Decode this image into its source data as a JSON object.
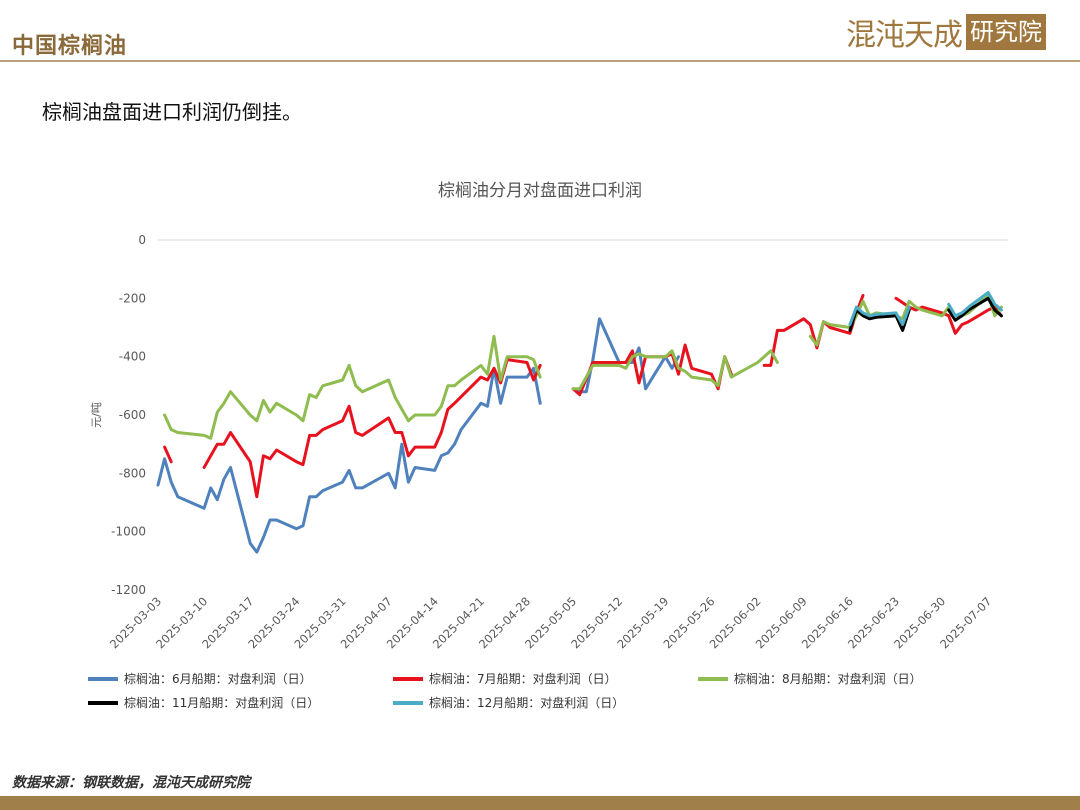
{
  "header": {
    "title": "中国棕榈油",
    "logo_text": "混沌天成",
    "logo_box_text": "研究院"
  },
  "subtitle": "棕榈油盘面进口利润仍倒挂。",
  "source": "数据来源：钢联数据，混沌天成研究院",
  "colors": {
    "s6": "#4f81bd",
    "s7": "#e8121e",
    "s8": "#8fbc4f",
    "s11": "#000000",
    "s12": "#4bacc6"
  },
  "chart_data": {
    "type": "line",
    "title": "棕榈油分月对盘面进口利润",
    "ylabel": "元/吨",
    "xlabel": "",
    "ylim": [
      -1200,
      0
    ],
    "yticks": [
      0,
      -200,
      -400,
      -600,
      -800,
      -1000,
      -1200
    ],
    "xlim": [
      "2025-03-03",
      "2025-07-10"
    ],
    "xticks": [
      "2025-03-03",
      "2025-03-10",
      "2025-03-17",
      "2025-03-24",
      "2025-03-31",
      "2025-04-07",
      "2025-04-14",
      "2025-04-21",
      "2025-04-28",
      "2025-05-05",
      "2025-05-12",
      "2025-05-19",
      "2025-05-26",
      "2025-06-02",
      "2025-06-09",
      "2025-06-16",
      "2025-06-23",
      "2025-06-30",
      "2025-07-07"
    ],
    "grid": "horizontal-zero-line",
    "legend_position": "bottom",
    "series": [
      {
        "name": "棕榈油：6月船期：对盘利润（日）",
        "color_key": "s6",
        "points": [
          [
            "2025-03-03",
            -840
          ],
          [
            "2025-03-04",
            -750
          ],
          [
            "2025-03-05",
            -830
          ],
          [
            "2025-03-06",
            -880
          ],
          [
            "2025-03-10",
            -920
          ],
          [
            "2025-03-11",
            -850
          ],
          [
            "2025-03-12",
            -890
          ],
          [
            "2025-03-13",
            -820
          ],
          [
            "2025-03-14",
            -780
          ],
          [
            "2025-03-17",
            -1040
          ],
          [
            "2025-03-18",
            -1070
          ],
          [
            "2025-03-19",
            -1020
          ],
          [
            "2025-03-20",
            -960
          ],
          [
            "2025-03-21",
            -960
          ],
          [
            "2025-03-24",
            -990
          ],
          [
            "2025-03-25",
            -980
          ],
          [
            "2025-03-26",
            -880
          ],
          [
            "2025-03-27",
            -880
          ],
          [
            "2025-03-28",
            -860
          ],
          [
            "2025-03-31",
            -830
          ],
          [
            "2025-04-01",
            -790
          ],
          [
            "2025-04-02",
            -850
          ],
          [
            "2025-04-03",
            -850
          ],
          [
            "2025-04-07",
            -800
          ],
          [
            "2025-04-08",
            -850
          ],
          [
            "2025-04-09",
            -700
          ],
          [
            "2025-04-10",
            -830
          ],
          [
            "2025-04-11",
            -780
          ],
          [
            "2025-04-14",
            -790
          ],
          [
            "2025-04-15",
            -740
          ],
          [
            "2025-04-16",
            -730
          ],
          [
            "2025-04-17",
            -700
          ],
          [
            "2025-04-18",
            -650
          ],
          [
            "2025-04-21",
            -560
          ],
          [
            "2025-04-22",
            -570
          ],
          [
            "2025-04-23",
            -440
          ],
          [
            "2025-04-24",
            -560
          ],
          [
            "2025-04-25",
            -470
          ],
          [
            "2025-04-28",
            -470
          ],
          [
            "2025-04-29",
            -440
          ],
          [
            "2025-04-30",
            -560
          ],
          [
            "2025-05-05",
            -510
          ],
          [
            "2025-05-06",
            -520
          ],
          [
            "2025-05-07",
            -520
          ],
          [
            "2025-05-08",
            -410
          ],
          [
            "2025-05-09",
            -270
          ],
          [
            "2025-05-12",
            -420
          ],
          [
            "2025-05-13",
            -420
          ],
          [
            "2025-05-14",
            -420
          ],
          [
            "2025-05-15",
            -370
          ],
          [
            "2025-05-16",
            -510
          ],
          [
            "2025-05-19",
            -400
          ],
          [
            "2025-05-20",
            -440
          ],
          [
            "2025-05-21",
            -400
          ]
        ]
      },
      {
        "name": "棕榈油：7月船期：对盘利润（日）",
        "color_key": "s7",
        "points": [
          [
            "2025-03-04",
            -710
          ],
          [
            "2025-03-05",
            -760
          ],
          [
            "2025-03-10",
            -780
          ],
          [
            "2025-03-11",
            -740
          ],
          [
            "2025-03-12",
            -700
          ],
          [
            "2025-03-13",
            -700
          ],
          [
            "2025-03-14",
            -660
          ],
          [
            "2025-03-17",
            -760
          ],
          [
            "2025-03-18",
            -880
          ],
          [
            "2025-03-19",
            -740
          ],
          [
            "2025-03-20",
            -750
          ],
          [
            "2025-03-21",
            -720
          ],
          [
            "2025-03-24",
            -760
          ],
          [
            "2025-03-25",
            -770
          ],
          [
            "2025-03-26",
            -670
          ],
          [
            "2025-03-27",
            -670
          ],
          [
            "2025-03-28",
            -650
          ],
          [
            "2025-03-31",
            -620
          ],
          [
            "2025-04-01",
            -570
          ],
          [
            "2025-04-02",
            -660
          ],
          [
            "2025-04-03",
            -670
          ],
          [
            "2025-04-07",
            -610
          ],
          [
            "2025-04-08",
            -660
          ],
          [
            "2025-04-09",
            -660
          ],
          [
            "2025-04-10",
            -740
          ],
          [
            "2025-04-11",
            -710
          ],
          [
            "2025-04-14",
            -710
          ],
          [
            "2025-04-15",
            -660
          ],
          [
            "2025-04-16",
            -580
          ],
          [
            "2025-04-17",
            -560
          ],
          [
            "2025-04-21",
            -470
          ],
          [
            "2025-04-22",
            -480
          ],
          [
            "2025-04-23",
            -440
          ],
          [
            "2025-04-24",
            -490
          ],
          [
            "2025-04-25",
            -410
          ],
          [
            "2025-04-28",
            -420
          ],
          [
            "2025-04-29",
            -480
          ],
          [
            "2025-04-30",
            -430
          ],
          [
            "2025-05-05",
            -510
          ],
          [
            "2025-05-06",
            -530
          ],
          [
            "2025-05-08",
            -420
          ],
          [
            "2025-05-09",
            -420
          ],
          [
            "2025-05-12",
            -420
          ],
          [
            "2025-05-13",
            -420
          ],
          [
            "2025-05-14",
            -380
          ],
          [
            "2025-05-15",
            -490
          ],
          [
            "2025-05-16",
            -400
          ],
          [
            "2025-05-19",
            -400
          ],
          [
            "2025-05-20",
            -390
          ],
          [
            "2025-05-21",
            -460
          ],
          [
            "2025-05-22",
            -360
          ],
          [
            "2025-05-23",
            -440
          ],
          [
            "2025-05-26",
            -460
          ],
          [
            "2025-05-27",
            -510
          ],
          [
            "2025-05-28",
            -400
          ],
          [
            "2025-05-29",
            -460
          ],
          [
            "2025-06-03",
            -430
          ],
          [
            "2025-06-04",
            -430
          ],
          [
            "2025-06-05",
            -310
          ],
          [
            "2025-06-06",
            -310
          ],
          [
            "2025-06-09",
            -270
          ],
          [
            "2025-06-10",
            -290
          ],
          [
            "2025-06-11",
            -370
          ],
          [
            "2025-06-12",
            -280
          ],
          [
            "2025-06-13",
            -300
          ],
          [
            "2025-06-16",
            -320
          ],
          [
            "2025-06-17",
            -250
          ],
          [
            "2025-06-18",
            -190
          ],
          [
            "2025-06-23",
            -200
          ],
          [
            "2025-06-25",
            -230
          ],
          [
            "2025-06-26",
            -240
          ],
          [
            "2025-06-27",
            -230
          ],
          [
            "2025-06-30",
            -250
          ],
          [
            "2025-07-01",
            -260
          ],
          [
            "2025-07-02",
            -320
          ],
          [
            "2025-07-03",
            -290
          ],
          [
            "2025-07-04",
            -280
          ],
          [
            "2025-07-07",
            -240
          ],
          [
            "2025-07-08",
            -230
          ],
          [
            "2025-07-09",
            -260
          ]
        ]
      },
      {
        "name": "棕榈油：8月船期：对盘利润（日）",
        "color_key": "s8",
        "points": [
          [
            "2025-03-04",
            -600
          ],
          [
            "2025-03-05",
            -650
          ],
          [
            "2025-03-06",
            -660
          ],
          [
            "2025-03-10",
            -670
          ],
          [
            "2025-03-11",
            -680
          ],
          [
            "2025-03-12",
            -590
          ],
          [
            "2025-03-13",
            -560
          ],
          [
            "2025-03-14",
            -520
          ],
          [
            "2025-03-17",
            -600
          ],
          [
            "2025-03-18",
            -620
          ],
          [
            "2025-03-19",
            -550
          ],
          [
            "2025-03-20",
            -590
          ],
          [
            "2025-03-21",
            -560
          ],
          [
            "2025-03-24",
            -600
          ],
          [
            "2025-03-25",
            -620
          ],
          [
            "2025-03-26",
            -530
          ],
          [
            "2025-03-27",
            -540
          ],
          [
            "2025-03-28",
            -500
          ],
          [
            "2025-03-31",
            -480
          ],
          [
            "2025-04-01",
            -430
          ],
          [
            "2025-04-02",
            -500
          ],
          [
            "2025-04-03",
            -520
          ],
          [
            "2025-04-07",
            -480
          ],
          [
            "2025-04-08",
            -540
          ],
          [
            "2025-04-10",
            -620
          ],
          [
            "2025-04-11",
            -600
          ],
          [
            "2025-04-14",
            -600
          ],
          [
            "2025-04-15",
            -570
          ],
          [
            "2025-04-16",
            -500
          ],
          [
            "2025-04-17",
            -500
          ],
          [
            "2025-04-18",
            -480
          ],
          [
            "2025-04-21",
            -430
          ],
          [
            "2025-04-22",
            -460
          ],
          [
            "2025-04-23",
            -330
          ],
          [
            "2025-04-24",
            -480
          ],
          [
            "2025-04-25",
            -400
          ],
          [
            "2025-04-28",
            -400
          ],
          [
            "2025-04-29",
            -410
          ],
          [
            "2025-04-30",
            -470
          ],
          [
            "2025-05-05",
            -510
          ],
          [
            "2025-05-06",
            -510
          ],
          [
            "2025-05-08",
            -430
          ],
          [
            "2025-05-09",
            -430
          ],
          [
            "2025-05-12",
            -430
          ],
          [
            "2025-05-13",
            -440
          ],
          [
            "2025-05-14",
            -400
          ],
          [
            "2025-05-15",
            -390
          ],
          [
            "2025-05-16",
            -400
          ],
          [
            "2025-05-19",
            -400
          ],
          [
            "2025-05-20",
            -380
          ],
          [
            "2025-05-21",
            -440
          ],
          [
            "2025-05-22",
            -450
          ],
          [
            "2025-05-23",
            -470
          ],
          [
            "2025-05-26",
            -480
          ],
          [
            "2025-05-27",
            -500
          ],
          [
            "2025-05-28",
            -400
          ],
          [
            "2025-05-29",
            -470
          ],
          [
            "2025-06-02",
            -420
          ],
          [
            "2025-06-03",
            -400
          ],
          [
            "2025-06-04",
            -380
          ],
          [
            "2025-06-05",
            -420
          ],
          [
            "2025-06-10",
            -330
          ],
          [
            "2025-06-11",
            -360
          ],
          [
            "2025-06-12",
            -280
          ],
          [
            "2025-06-13",
            -290
          ],
          [
            "2025-06-16",
            -300
          ],
          [
            "2025-06-17",
            -260
          ],
          [
            "2025-06-18",
            -210
          ],
          [
            "2025-06-19",
            -260
          ],
          [
            "2025-06-20",
            -250
          ],
          [
            "2025-06-23",
            -260
          ],
          [
            "2025-06-24",
            -270
          ],
          [
            "2025-06-25",
            -210
          ],
          [
            "2025-06-26",
            -230
          ],
          [
            "2025-06-27",
            -240
          ],
          [
            "2025-06-30",
            -260
          ],
          [
            "2025-07-01",
            -230
          ],
          [
            "2025-07-02",
            -260
          ],
          [
            "2025-07-03",
            -260
          ],
          [
            "2025-07-04",
            -250
          ],
          [
            "2025-07-07",
            -190
          ],
          [
            "2025-07-08",
            -260
          ],
          [
            "2025-07-09",
            -230
          ]
        ]
      },
      {
        "name": "棕榈油：11月船期：对盘利润（日）",
        "color_key": "s11",
        "points": [
          [
            "2025-06-16",
            -310
          ],
          [
            "2025-06-17",
            -240
          ],
          [
            "2025-06-18",
            -260
          ],
          [
            "2025-06-19",
            -270
          ],
          [
            "2025-06-20",
            -265
          ],
          [
            "2025-06-23",
            -260
          ],
          [
            "2025-06-24",
            -310
          ],
          [
            "2025-06-25",
            -240
          ],
          [
            "2025-07-01",
            -240
          ],
          [
            "2025-07-02",
            -275
          ],
          [
            "2025-07-03",
            -260
          ],
          [
            "2025-07-04",
            -240
          ],
          [
            "2025-07-07",
            -200
          ],
          [
            "2025-07-08",
            -240
          ],
          [
            "2025-07-09",
            -260
          ]
        ]
      },
      {
        "name": "棕榈油：12月船期：对盘利润（日）",
        "color_key": "s12",
        "points": [
          [
            "2025-06-16",
            -290
          ],
          [
            "2025-06-17",
            -230
          ],
          [
            "2025-06-18",
            -250
          ],
          [
            "2025-06-19",
            -260
          ],
          [
            "2025-06-20",
            -255
          ],
          [
            "2025-06-23",
            -250
          ],
          [
            "2025-06-24",
            -290
          ],
          [
            "2025-06-25",
            -230
          ],
          [
            "2025-07-01",
            -220
          ],
          [
            "2025-07-02",
            -260
          ],
          [
            "2025-07-03",
            -250
          ],
          [
            "2025-07-04",
            -230
          ],
          [
            "2025-07-07",
            -180
          ],
          [
            "2025-07-08",
            -220
          ],
          [
            "2025-07-09",
            -240
          ]
        ]
      }
    ]
  }
}
